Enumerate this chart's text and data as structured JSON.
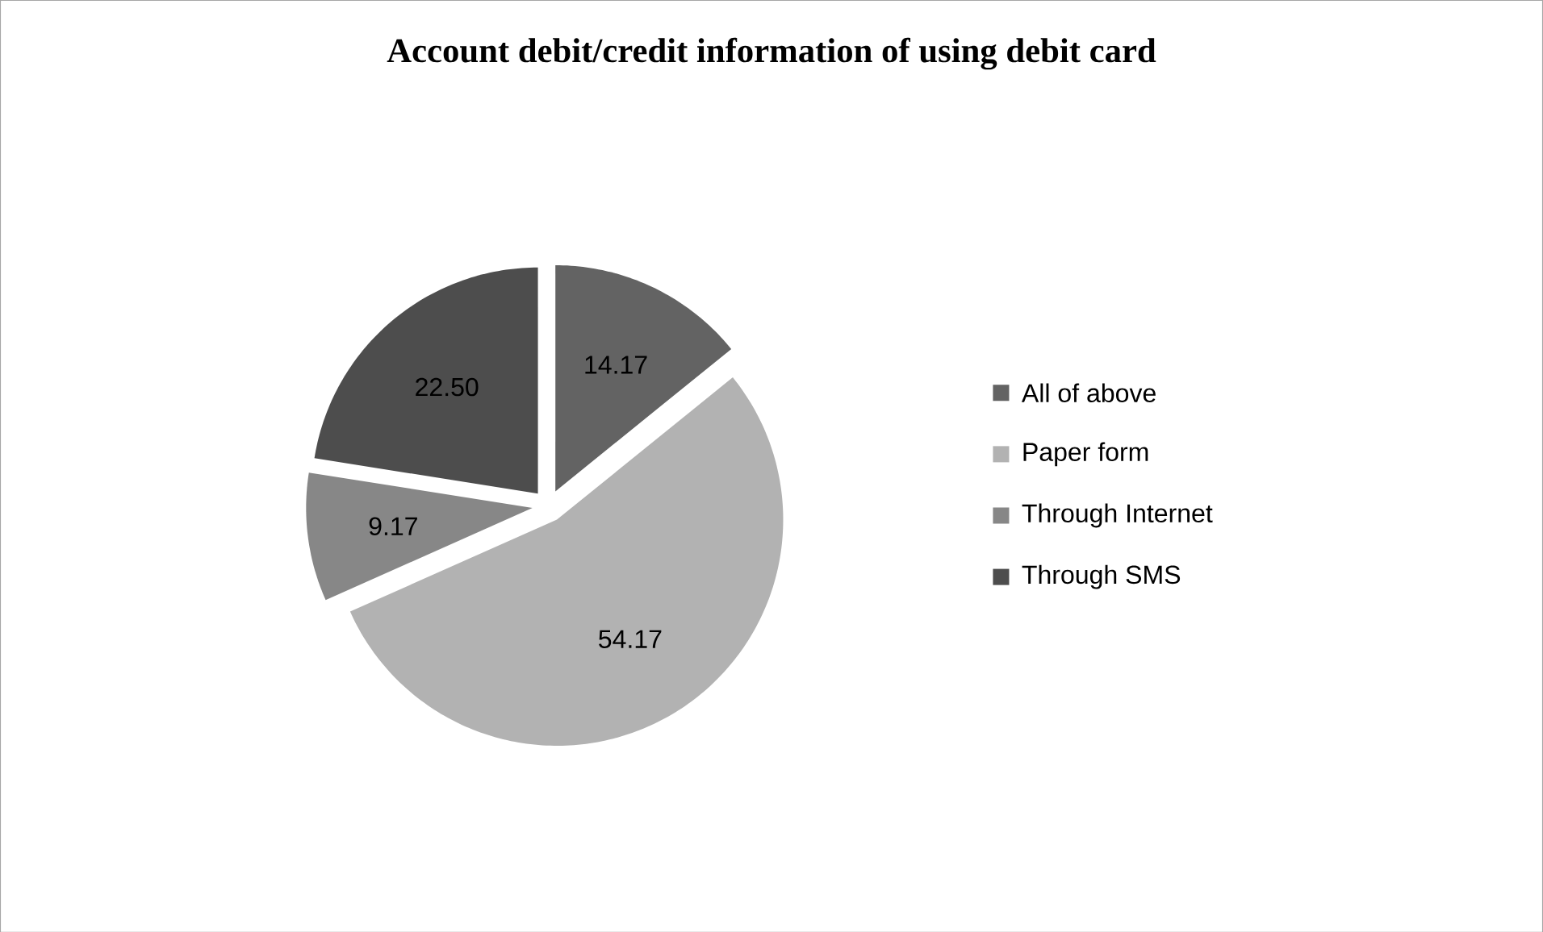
{
  "chart_data": {
    "type": "pie",
    "title": "Account debit/credit information of using debit card",
    "categories": [
      "All of above",
      "Paper form",
      "Through Internet",
      "Through SMS"
    ],
    "values": [
      14.17,
      54.17,
      9.17,
      22.5
    ],
    "value_labels": [
      "14.17",
      "54.17",
      "9.17",
      "22.50"
    ],
    "colors": [
      "#636363",
      "#b2b2b2",
      "#878787",
      "#4d4d4d"
    ],
    "legend": "right"
  }
}
